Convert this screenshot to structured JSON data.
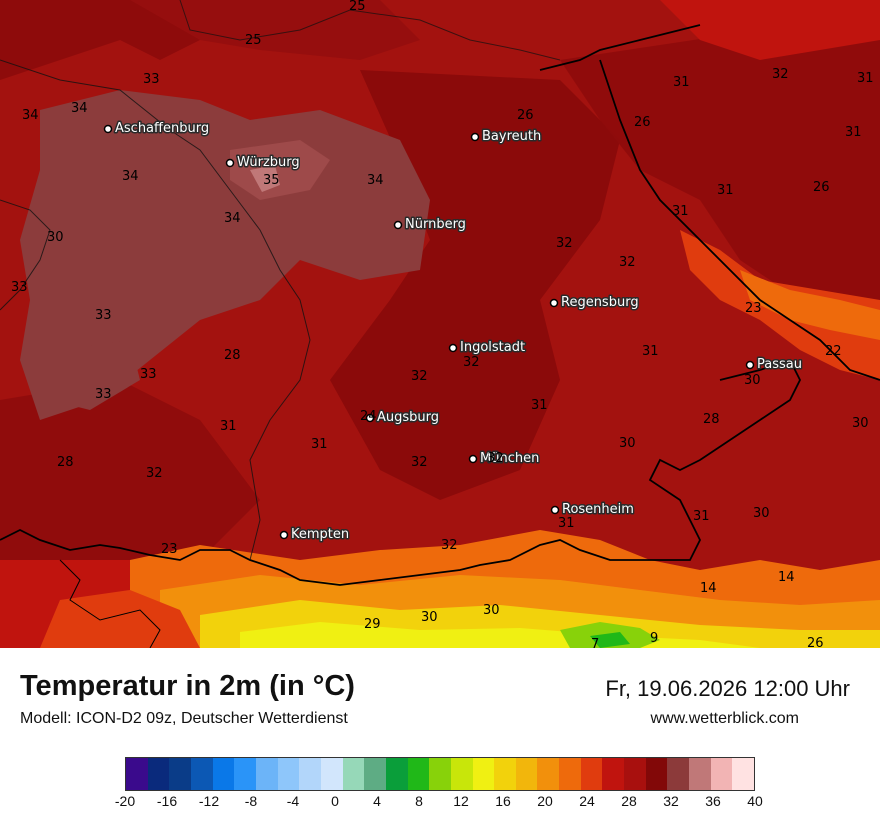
{
  "header": {
    "title": "Temperatur in 2m (in °C)",
    "model": "Modell: ICON-D2 09z, Deutscher Wetterdienst",
    "datetime": "Fr, 19.06.2026 12:00 Uhr",
    "website": "www.wetterblick.com"
  },
  "cities": [
    {
      "name": "Aschaffenburg"
    },
    {
      "name": "Würzburg"
    },
    {
      "name": "Bayreuth"
    },
    {
      "name": "Nürnberg"
    },
    {
      "name": "Regensburg"
    },
    {
      "name": "Ingolstadt"
    },
    {
      "name": "Passau"
    },
    {
      "name": "Augsburg"
    },
    {
      "name": "München"
    },
    {
      "name": "Rosenheim"
    },
    {
      "name": "Kempten"
    }
  ],
  "temperature_labels": [
    "25",
    "25",
    "33",
    "34",
    "34",
    "26",
    "31",
    "32",
    "31",
    "31",
    "26",
    "34",
    "35",
    "34",
    "31",
    "31",
    "26",
    "30",
    "34",
    "32",
    "32",
    "33",
    "23",
    "33",
    "28",
    "31",
    "22",
    "33",
    "32",
    "32",
    "30",
    "33",
    "24",
    "31",
    "28",
    "31",
    "30",
    "30",
    "28",
    "32",
    "32",
    "31",
    "30",
    "32",
    "31",
    "23",
    "31",
    "32",
    "14",
    "14",
    "30",
    "30",
    "29",
    "26",
    "9",
    "7"
  ],
  "legend": {
    "colors": [
      "#3a0a8c",
      "#0a2a7c",
      "#0a3c88",
      "#0c58b4",
      "#0a78e8",
      "#2a94f8",
      "#6cb4f8",
      "#8ec6fa",
      "#b2d6fa",
      "#d2e6fc",
      "#96d8b8",
      "#5eac84",
      "#0a9e3a",
      "#20b818",
      "#88d20a",
      "#c8e60a",
      "#f0f012",
      "#f2d20c",
      "#f2b60c",
      "#f2900c",
      "#ee6a0c",
      "#e03c0e",
      "#c0140e",
      "#a8100e",
      "#820808",
      "#8c3a3a",
      "#c07878",
      "#f2b4b4",
      "#ffe2e2"
    ],
    "ticks": [
      "-20",
      "-16",
      "-12",
      "-8",
      "-4",
      "0",
      "4",
      "8",
      "12",
      "16",
      "20",
      "24",
      "28",
      "32",
      "36",
      "40"
    ]
  }
}
